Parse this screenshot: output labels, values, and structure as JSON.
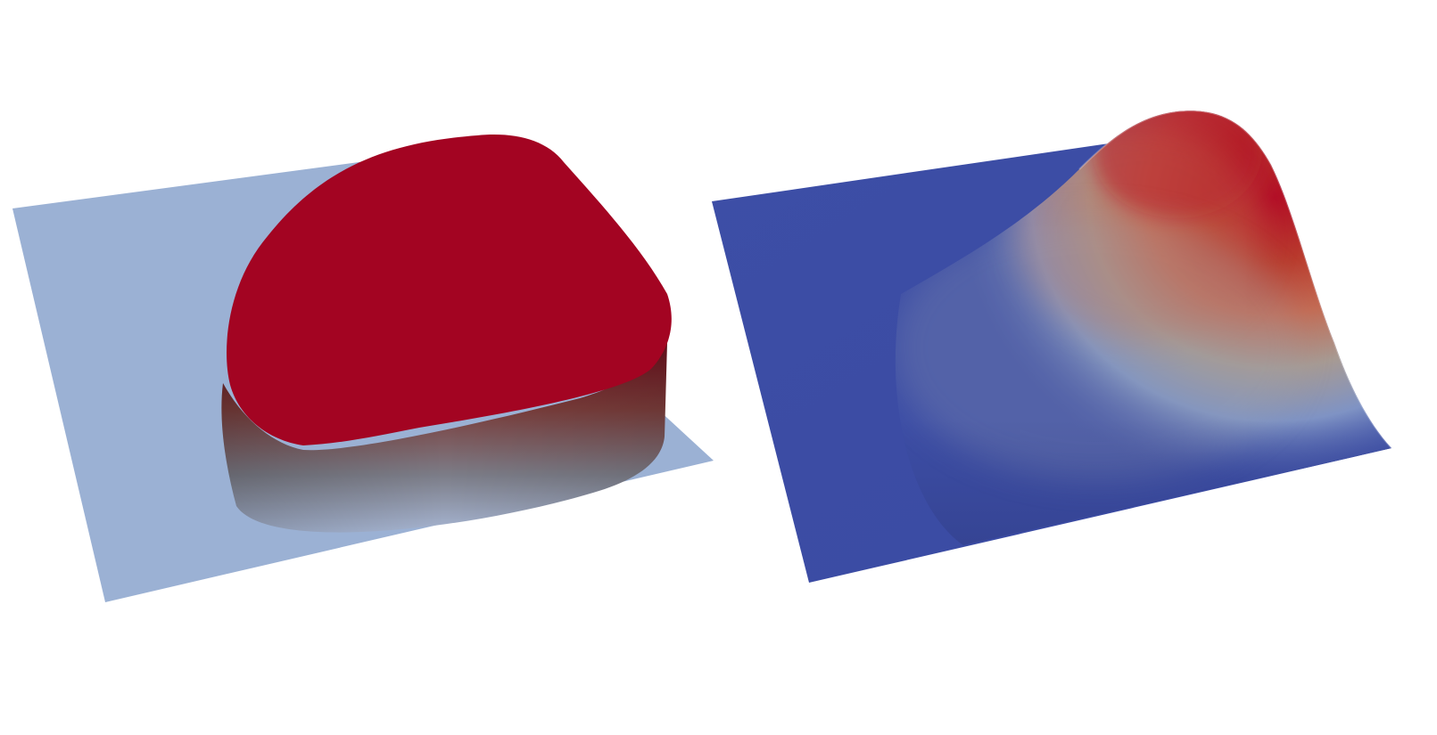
{
  "panels": [
    {
      "id": "left",
      "kind": "thresholded surface (plateau on flat plane)",
      "colors": {
        "plane": "#9bb1d4",
        "plateau_top": "#a30422",
        "wall_top": "#8c1d24",
        "wall_mid": "#7a5a56",
        "wall_bottom": "#8ea3c4"
      }
    },
    {
      "id": "right",
      "kind": "smooth bump surface (colormap from low to high)",
      "colors": {
        "low": "#3f51a8",
        "mid": "#9aa0aa",
        "high": "#b10d28"
      }
    }
  ]
}
